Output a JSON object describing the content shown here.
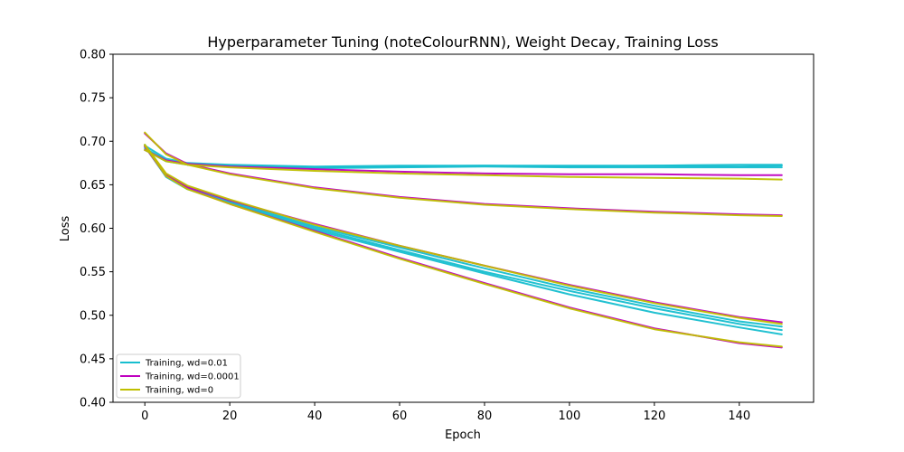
{
  "chart_data": {
    "type": "line",
    "title": "Hyperparameter Tuning (noteColourRNN), Weight Decay, Training Loss",
    "xlabel": "Epoch",
    "ylabel": "Loss",
    "xlim": [
      -7.5,
      157.5
    ],
    "ylim": [
      0.4,
      0.8
    ],
    "xticks": [
      0,
      20,
      40,
      60,
      80,
      100,
      120,
      140
    ],
    "xtick_labels": [
      "0",
      "20",
      "40",
      "60",
      "80",
      "100",
      "120",
      "140"
    ],
    "yticks": [
      0.4,
      0.45,
      0.5,
      0.55,
      0.6,
      0.65,
      0.7,
      0.75,
      0.8
    ],
    "ytick_labels": [
      "0.40",
      "0.45",
      "0.50",
      "0.55",
      "0.60",
      "0.65",
      "0.70",
      "0.75",
      "0.80"
    ],
    "grid": false,
    "legend_placement": "lower-left",
    "legend": [
      {
        "label": "Training, wd=0.01",
        "color": "#17becf"
      },
      {
        "label": "Training, wd=0.0001",
        "color": "#bf00bf"
      },
      {
        "label": "Training, wd=0",
        "color": "#bfbf00"
      }
    ],
    "series": [
      {
        "group": 0,
        "color": "#17becf",
        "x": [
          0,
          5,
          10,
          20,
          40,
          60,
          80,
          100,
          120,
          140,
          150
        ],
        "y": [
          0.695,
          0.68,
          0.675,
          0.673,
          0.671,
          0.672,
          0.672,
          0.672,
          0.672,
          0.671,
          0.672
        ]
      },
      {
        "group": 0,
        "color": "#17becf",
        "x": [
          0,
          5,
          10,
          20,
          40,
          60,
          80,
          100,
          120,
          140,
          150
        ],
        "y": [
          0.692,
          0.678,
          0.674,
          0.672,
          0.67,
          0.671,
          0.672,
          0.671,
          0.672,
          0.673,
          0.673
        ]
      },
      {
        "group": 0,
        "color": "#17becf",
        "x": [
          0,
          5,
          10,
          20,
          40,
          60,
          80,
          100,
          120,
          140,
          150
        ],
        "y": [
          0.69,
          0.677,
          0.673,
          0.671,
          0.669,
          0.67,
          0.671,
          0.67,
          0.67,
          0.67,
          0.67
        ]
      },
      {
        "group": 0,
        "color": "#17becf",
        "x": [
          0,
          5,
          10,
          20,
          40,
          60,
          80,
          100,
          120,
          140,
          150
        ],
        "y": [
          0.695,
          0.66,
          0.646,
          0.63,
          0.6,
          0.575,
          0.55,
          0.528,
          0.508,
          0.49,
          0.483
        ]
      },
      {
        "group": 0,
        "color": "#17becf",
        "x": [
          0,
          5,
          10,
          20,
          40,
          60,
          80,
          100,
          120,
          140,
          150
        ],
        "y": [
          0.694,
          0.659,
          0.645,
          0.629,
          0.598,
          0.573,
          0.548,
          0.524,
          0.503,
          0.486,
          0.478
        ]
      },
      {
        "group": 0,
        "color": "#17becf",
        "x": [
          0,
          5,
          10,
          20,
          40,
          60,
          80,
          100,
          120,
          140,
          150
        ],
        "y": [
          0.696,
          0.661,
          0.647,
          0.631,
          0.602,
          0.578,
          0.554,
          0.531,
          0.511,
          0.493,
          0.487
        ]
      },
      {
        "group": 1,
        "color": "#bf00bf",
        "x": [
          0,
          5,
          10,
          20,
          40,
          60,
          80,
          100,
          120,
          140,
          150
        ],
        "y": [
          0.69,
          0.678,
          0.674,
          0.671,
          0.668,
          0.665,
          0.663,
          0.662,
          0.662,
          0.661,
          0.661
        ]
      },
      {
        "group": 1,
        "color": "#bf00bf",
        "x": [
          0,
          5,
          10,
          20,
          40,
          60,
          80,
          100,
          120,
          140,
          150
        ],
        "y": [
          0.709,
          0.686,
          0.674,
          0.663,
          0.647,
          0.636,
          0.628,
          0.623,
          0.619,
          0.616,
          0.615
        ]
      },
      {
        "group": 1,
        "color": "#bf00bf",
        "x": [
          0,
          5,
          10,
          20,
          40,
          60,
          80,
          100,
          120,
          140,
          150
        ],
        "y": [
          0.694,
          0.66,
          0.646,
          0.628,
          0.597,
          0.566,
          0.537,
          0.509,
          0.485,
          0.468,
          0.463
        ]
      },
      {
        "group": 1,
        "color": "#bf00bf",
        "x": [
          0,
          5,
          10,
          20,
          40,
          60,
          80,
          100,
          120,
          140,
          150
        ],
        "y": [
          0.695,
          0.662,
          0.648,
          0.632,
          0.605,
          0.58,
          0.557,
          0.535,
          0.515,
          0.498,
          0.492
        ]
      },
      {
        "group": 2,
        "color": "#bfbf00",
        "x": [
          0,
          5,
          10,
          20,
          40,
          60,
          80,
          100,
          120,
          140,
          150
        ],
        "y": [
          0.69,
          0.677,
          0.673,
          0.67,
          0.666,
          0.663,
          0.661,
          0.659,
          0.658,
          0.657,
          0.656
        ]
      },
      {
        "group": 2,
        "color": "#bfbf00",
        "x": [
          0,
          5,
          10,
          20,
          40,
          60,
          80,
          100,
          120,
          140,
          150
        ],
        "y": [
          0.71,
          0.685,
          0.673,
          0.662,
          0.646,
          0.635,
          0.627,
          0.622,
          0.618,
          0.615,
          0.614
        ]
      },
      {
        "group": 2,
        "color": "#bfbf00",
        "x": [
          0,
          5,
          10,
          20,
          40,
          60,
          80,
          100,
          120,
          140,
          150
        ],
        "y": [
          0.695,
          0.66,
          0.645,
          0.628,
          0.596,
          0.565,
          0.536,
          0.508,
          0.484,
          0.469,
          0.464
        ]
      },
      {
        "group": 2,
        "color": "#bfbf00",
        "x": [
          0,
          5,
          10,
          20,
          40,
          60,
          80,
          100,
          120,
          140,
          150
        ],
        "y": [
          0.696,
          0.663,
          0.649,
          0.633,
          0.604,
          0.58,
          0.557,
          0.534,
          0.514,
          0.497,
          0.49
        ]
      }
    ]
  }
}
